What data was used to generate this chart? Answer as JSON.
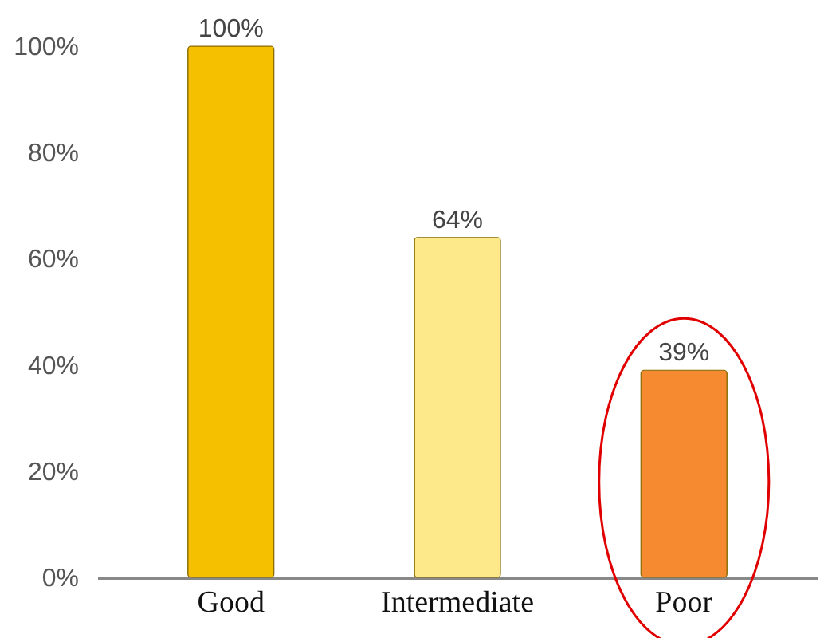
{
  "chart_data": {
    "type": "bar",
    "categories": [
      "Good",
      "Intermediate",
      "Poor"
    ],
    "values": [
      100,
      64,
      39
    ],
    "colors": [
      "#f5c000",
      "#fde98a",
      "#f58a30"
    ],
    "value_labels": [
      "100%",
      "64%",
      "39%"
    ],
    "ylim": [
      0,
      100
    ],
    "yticks": [
      {
        "value": 0,
        "label": "0%"
      },
      {
        "value": 20,
        "label": "20%"
      },
      {
        "value": 40,
        "label": "40%"
      },
      {
        "value": 60,
        "label": "60%"
      },
      {
        "value": 80,
        "label": "80%"
      },
      {
        "value": 100,
        "label": "100%"
      }
    ],
    "grid": false
  }
}
